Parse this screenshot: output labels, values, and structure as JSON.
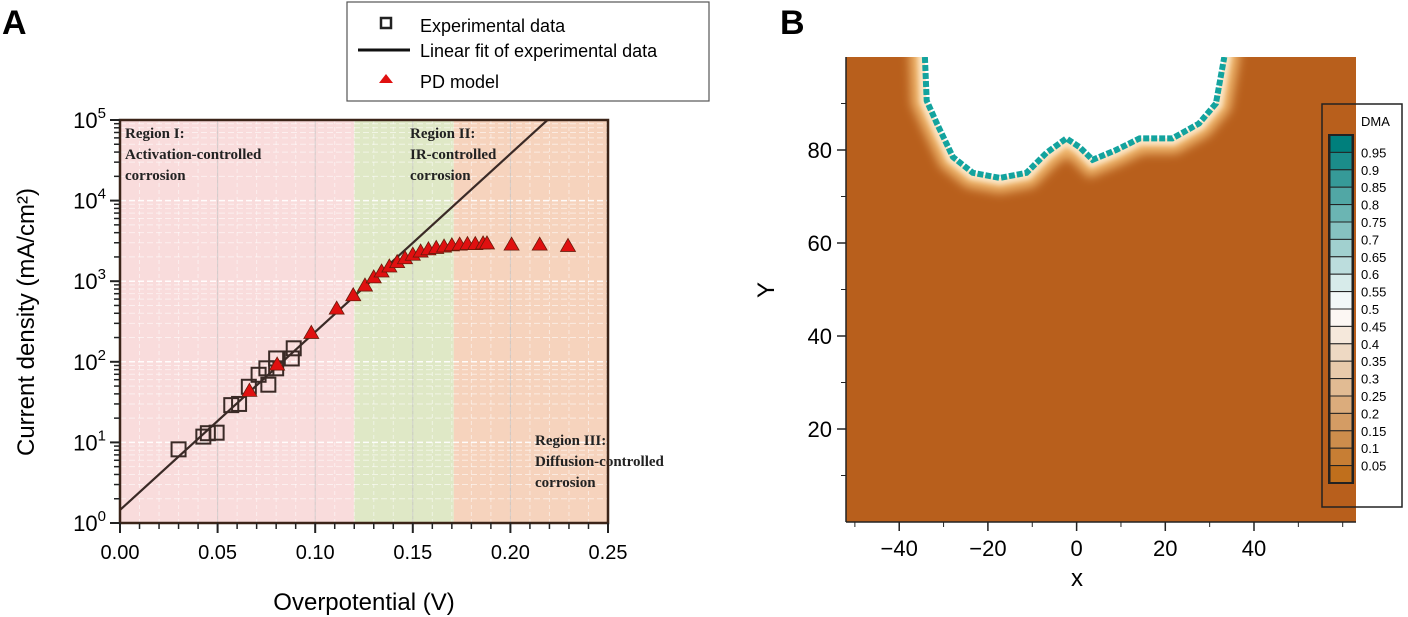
{
  "panels": {
    "a_label": "A",
    "b_label": "B"
  },
  "chart_data": [
    {
      "type": "scatter",
      "panel": "A",
      "xlabel": "Overpotential (V)",
      "ylabel": "Current density (mA/cm²)",
      "xlim": [
        0,
        0.25
      ],
      "ylim": [
        1,
        100000
      ],
      "yscale": "log",
      "x_ticks": [
        "0.00",
        "0.05",
        "0.10",
        "0.15",
        "0.20",
        "0.25"
      ],
      "y_tick_base": "10",
      "y_tick_exponents": [
        "0",
        "1",
        "2",
        "3",
        "4",
        "5"
      ],
      "grid": true,
      "legend_placement": "top, outside",
      "regions": [
        {
          "label_line1": "Region I:",
          "label_line2": "Activation-controlled",
          "label_line3": "corrosion",
          "x_range": [
            0,
            0.12
          ],
          "color": "#f9dcdc"
        },
        {
          "label_line1": "Region II:",
          "label_line2": "IR-controlled",
          "label_line3": "corrosion",
          "x_range": [
            0.12,
            0.171
          ],
          "color": "#dfe8c6"
        },
        {
          "label_line1": "Region III:",
          "label_line2": "Diffusion-controlled",
          "label_line3": "corrosion",
          "x_range": [
            0.171,
            0.266
          ],
          "color": "#f6d3bd"
        }
      ],
      "series": [
        {
          "name": "Experimental data",
          "marker": "open-square",
          "color": "#3a2a26",
          "x": [
            0.03,
            0.0427,
            0.045,
            0.0495,
            0.057,
            0.061,
            0.066,
            0.071,
            0.075,
            0.076,
            0.08,
            0.08,
            0.088,
            0.089
          ],
          "y": [
            8.2,
            11.8,
            13,
            13.2,
            29,
            30,
            49,
            69,
            83,
            52,
            110,
            83,
            110,
            147
          ]
        },
        {
          "name": "Linear fit of experimental data",
          "marker": "line",
          "color": "#3a2a26",
          "x": [
            0,
            0.219
          ],
          "y": [
            1.45,
            100000
          ]
        },
        {
          "name": "PD model",
          "marker": "filled-triangle",
          "color": "#e01010",
          "x": [
            0.0663,
            0.0805,
            0.098,
            0.111,
            0.1195,
            0.1255,
            0.13,
            0.134,
            0.138,
            0.142,
            0.146,
            0.15,
            0.154,
            0.158,
            0.162,
            0.166,
            0.17,
            0.174,
            0.178,
            0.182,
            0.186,
            0.188,
            0.2006,
            0.215,
            0.2295
          ],
          "y": [
            43,
            91,
            225,
            450,
            660,
            870,
            1100,
            1300,
            1500,
            1700,
            1900,
            2100,
            2300,
            2450,
            2550,
            2650,
            2750,
            2800,
            2850,
            2850,
            2900,
            2900,
            2800,
            2800,
            2700
          ],
          "curve_x": [
            0.12,
            0.13,
            0.14,
            0.15,
            0.16,
            0.17,
            0.18,
            0.188
          ],
          "curve_y": [
            650,
            1150,
            1650,
            2050,
            2350,
            2500,
            2550,
            2550
          ]
        }
      ]
    },
    {
      "type": "heatmap",
      "panel": "B",
      "xlabel": "x",
      "ylabel": "Y",
      "xlim": [
        -52,
        63
      ],
      "ylim": [
        0,
        100
      ],
      "x_ticks": [
        "-40",
        "-20",
        "0",
        "20",
        "40"
      ],
      "x_tick_values": [
        -40,
        -20,
        0,
        20,
        40
      ],
      "y_ticks": [
        "20",
        "40",
        "60",
        "80"
      ],
      "y_tick_values": [
        20,
        40,
        60,
        80
      ],
      "colorbar": {
        "title": "DMA",
        "levels": [
          "0.95",
          "0.9",
          "0.85",
          "0.8",
          "0.75",
          "0.7",
          "0.65",
          "0.6",
          "0.55",
          "0.5",
          "0.45",
          "0.4",
          "0.35",
          "0.3",
          "0.25",
          "0.2",
          "0.15",
          "0.1",
          "0.05"
        ],
        "low_color": "#c06f1c",
        "mid_color": "#ffffff",
        "high_color": "#007f7c"
      },
      "background_value_color": "#b85f1c",
      "pit_boundary": {
        "x": [
          -34.2,
          -33.8,
          -31.5,
          -27.9,
          -23.4,
          -17.3,
          -11.3,
          -6.8,
          -2.3,
          0.7,
          3.6,
          8.9,
          14.2,
          21.6,
          27.6,
          31.4,
          33.3
        ],
        "y": [
          100,
          90.6,
          85.7,
          78.5,
          75.1,
          74,
          75.1,
          79.4,
          82.5,
          80.6,
          77.9,
          80,
          82.5,
          82.5,
          85.7,
          90,
          100
        ]
      }
    }
  ]
}
